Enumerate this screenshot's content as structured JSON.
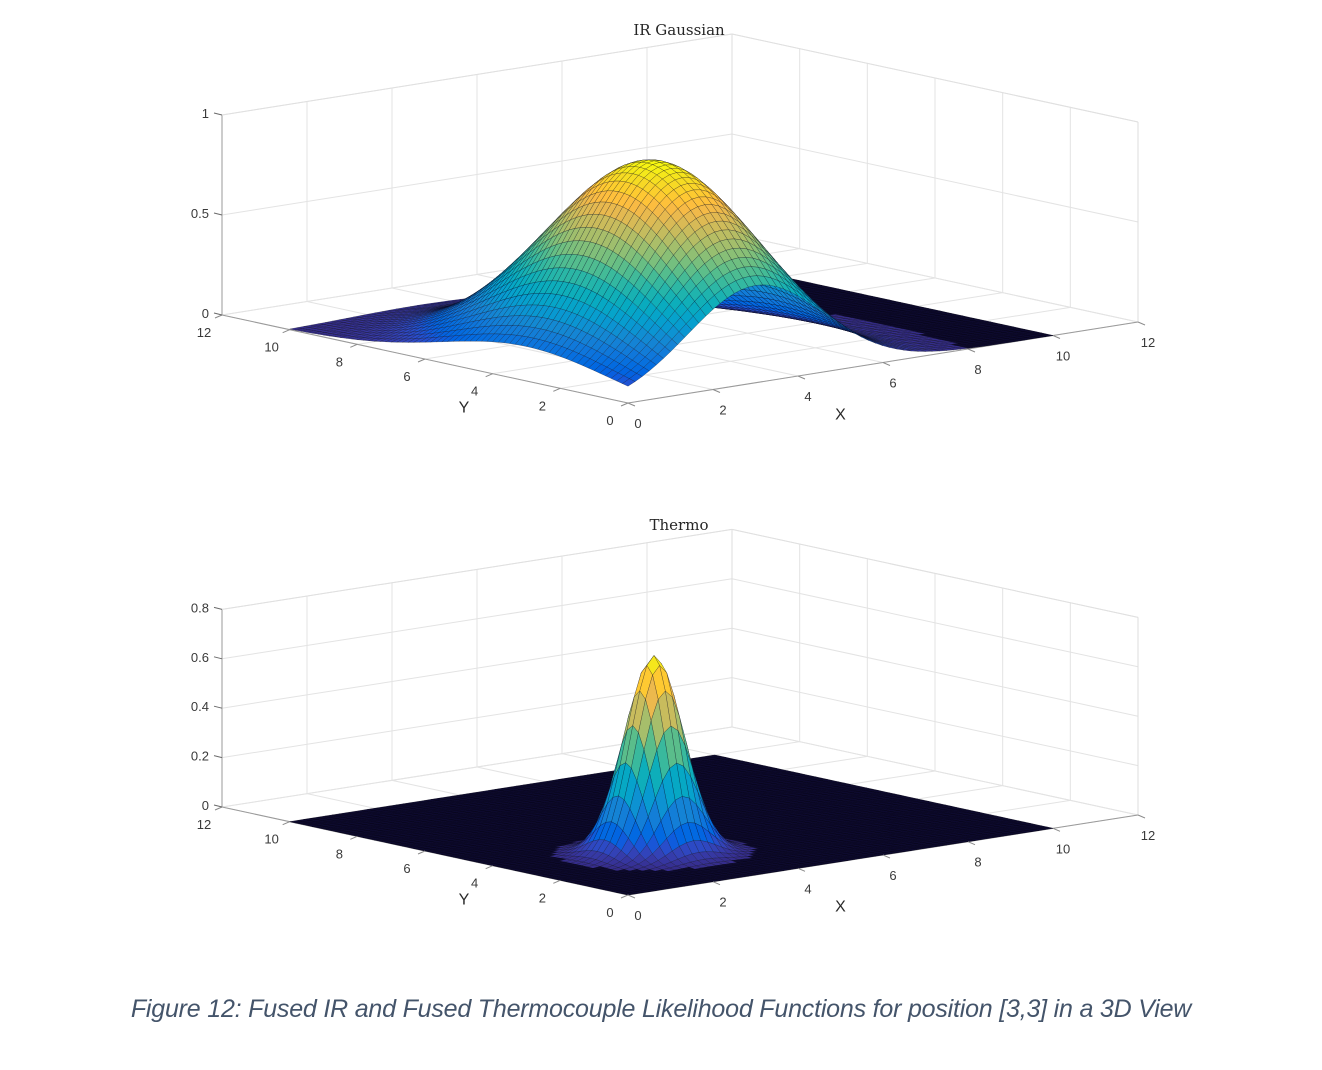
{
  "figure": {
    "caption": "Figure 12: Fused IR and Fused Thermocouple Likelihood Functions for position [3,3] in a 3D View"
  },
  "plots": [
    {
      "title": "IR Gaussian",
      "xlabel": "X",
      "ylabel": "Y",
      "x_ticks": [
        "0",
        "2",
        "4",
        "6",
        "8",
        "10",
        "12"
      ],
      "y_ticks": [
        "0",
        "2",
        "4",
        "6",
        "8",
        "10",
        "12"
      ],
      "z_ticks": [
        "0",
        "0.5",
        "1"
      ]
    },
    {
      "title": "Thermo",
      "xlabel": "X",
      "ylabel": "Y",
      "x_ticks": [
        "0",
        "2",
        "4",
        "6",
        "8",
        "10",
        "12"
      ],
      "y_ticks": [
        "0",
        "2",
        "4",
        "6",
        "8",
        "10",
        "12"
      ],
      "z_ticks": [
        "0",
        "0.2",
        "0.4",
        "0.6",
        "0.8"
      ]
    }
  ],
  "chart_data": [
    {
      "type": "surface",
      "title": "IR Gaussian",
      "xlabel": "X",
      "ylabel": "Y",
      "zlabel": "",
      "xlim": [
        0,
        12
      ],
      "ylim": [
        0,
        12
      ],
      "zlim": [
        0,
        1
      ],
      "grid": true,
      "colormap": "parula",
      "surface_extent": {
        "x": [
          0,
          10
        ],
        "y": [
          0,
          10
        ]
      },
      "peak": {
        "x": 3,
        "y": 3,
        "z": 1.0
      },
      "sigma_estimate": {
        "x": 1.6,
        "y": 2.5
      },
      "description": "Broad Gaussian likelihood peaked near position [3,3] with max value ~1.0"
    },
    {
      "type": "surface",
      "title": "Thermo",
      "xlabel": "X",
      "ylabel": "Y",
      "zlabel": "",
      "xlim": [
        0,
        12
      ],
      "ylim": [
        0,
        12
      ],
      "zlim": [
        0,
        0.8
      ],
      "grid": true,
      "colormap": "parula",
      "surface_extent": {
        "x": [
          0,
          10
        ],
        "y": [
          0,
          10
        ]
      },
      "peak": {
        "x": 3,
        "y": 3,
        "z": 0.8
      },
      "sigma_estimate": {
        "x": 0.55,
        "y": 0.55
      },
      "description": "Narrow Gaussian likelihood peaked at position [3,3] with max value ~0.8"
    }
  ],
  "style": {
    "axis_color": "#262626",
    "grid_color": "#e3e3e3",
    "floor_color": "#0d0a2e",
    "caption_color": "#44546a"
  }
}
